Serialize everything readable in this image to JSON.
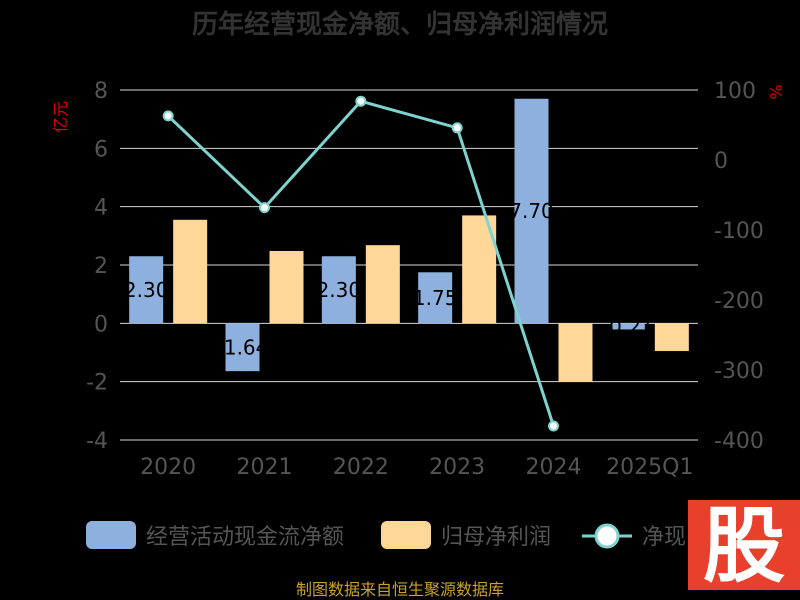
{
  "title": "历年经营现金净额、归母净利润情况",
  "left_unit": "亿元",
  "right_unit": "%",
  "footer": "制图数据来自恒生聚源数据库",
  "badge_text": "股",
  "colors": {
    "op_cash": "#8eb0de",
    "net_profit": "#ffd898",
    "ratio_line": "#7fd3cf",
    "badge": "#e8402c",
    "grid": "#d6d6d6"
  },
  "chart_data": {
    "type": "bar",
    "categories": [
      "2020",
      "2021",
      "2022",
      "2023",
      "2024",
      "2025Q1"
    ],
    "series": [
      {
        "name": "经营活动现金流净额",
        "type": "bar",
        "axis": "left",
        "values": [
          2.3,
          -1.64,
          2.3,
          1.75,
          7.7,
          -0.21
        ],
        "labels": [
          "2.30",
          "-1.64",
          "2.30",
          "1.75",
          "7.70",
          "-0.21"
        ]
      },
      {
        "name": "归母净利润",
        "type": "bar",
        "axis": "left",
        "values": [
          3.55,
          2.48,
          2.68,
          3.7,
          -2.0,
          -0.95
        ]
      },
      {
        "name": "净现比",
        "type": "line",
        "axis": "right",
        "values": [
          63,
          -68,
          84,
          46,
          -380,
          null
        ]
      }
    ],
    "left_axis": {
      "min": -4,
      "max": 8,
      "ticks": [
        -4,
        -2,
        0,
        2,
        4,
        6,
        8
      ]
    },
    "right_axis": {
      "min": -400,
      "max": 100,
      "ticks": [
        -400,
        -300,
        -200,
        -100,
        0,
        100
      ]
    },
    "legend": {
      "items": [
        "经营活动现金流净额",
        "归母净利润",
        "净现比"
      ],
      "position": "bottom"
    },
    "grid": true
  }
}
